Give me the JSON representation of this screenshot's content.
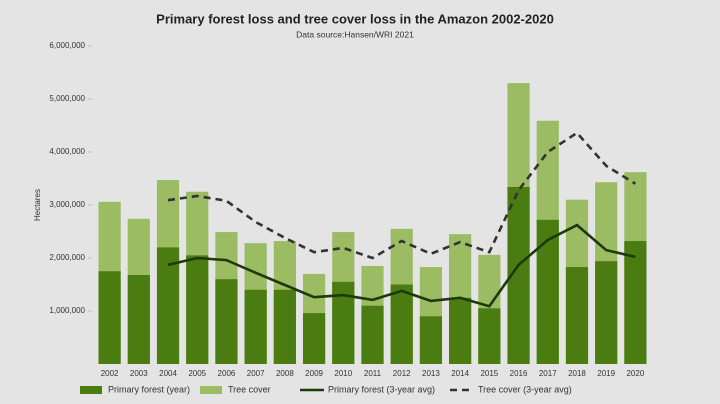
{
  "chart_data": {
    "type": "bar",
    "title": "Primary forest loss and tree cover loss in the Amazon 2002-2020",
    "subtitle": "Data source:Hansen/WRI 2021",
    "y_label": "Hectares",
    "categories": [
      "2002",
      "2003",
      "2004",
      "2005",
      "2006",
      "2007",
      "2008",
      "2009",
      "2010",
      "2011",
      "2012",
      "2013",
      "2014",
      "2015",
      "2016",
      "2017",
      "2018",
      "2019",
      "2020"
    ],
    "series": [
      {
        "name": "Primary forest (year)",
        "color": "#4b7c12",
        "kind": "bar",
        "values": [
          1750000,
          1680000,
          2200000,
          2050000,
          1600000,
          1400000,
          1400000,
          960000,
          1550000,
          1100000,
          1500000,
          900000,
          1250000,
          1050000,
          3340000,
          2720000,
          1830000,
          1940000,
          2320000
        ]
      },
      {
        "name": "Tree cover",
        "color": "#9cbc64",
        "kind": "bar",
        "values": [
          3060000,
          2740000,
          3470000,
          3250000,
          2490000,
          2280000,
          2320000,
          1700000,
          2490000,
          1850000,
          2550000,
          1830000,
          2450000,
          2060000,
          5300000,
          4590000,
          3100000,
          3430000,
          3620000
        ]
      },
      {
        "name": "Primary forest (3-year avg)",
        "color": "#1d3a0c",
        "kind": "line",
        "values": [
          null,
          null,
          1870000,
          2000000,
          1960000,
          1720000,
          1490000,
          1260000,
          1300000,
          1210000,
          1380000,
          1190000,
          1250000,
          1090000,
          1870000,
          2340000,
          2620000,
          2150000,
          2020000
        ]
      },
      {
        "name": "Tree cover (3-year avg)",
        "color": "#333333",
        "kind": "dashed",
        "values": [
          null,
          null,
          3090000,
          3170000,
          3080000,
          2680000,
          2380000,
          2110000,
          2190000,
          2000000,
          2320000,
          2080000,
          2300000,
          2110000,
          3280000,
          4000000,
          4360000,
          3740000,
          3400000
        ]
      }
    ],
    "ylim": [
      0,
      6000000
    ],
    "yticks": [
      {
        "value": 1000000,
        "label": "1,000,000"
      },
      {
        "value": 2000000,
        "label": "2,000,000"
      },
      {
        "value": 3000000,
        "label": "3,000,000"
      },
      {
        "value": 4000000,
        "label": "4,000,000"
      },
      {
        "value": 5000000,
        "label": "5,000,000"
      },
      {
        "value": 6000000,
        "label": "6,000,000"
      }
    ]
  }
}
